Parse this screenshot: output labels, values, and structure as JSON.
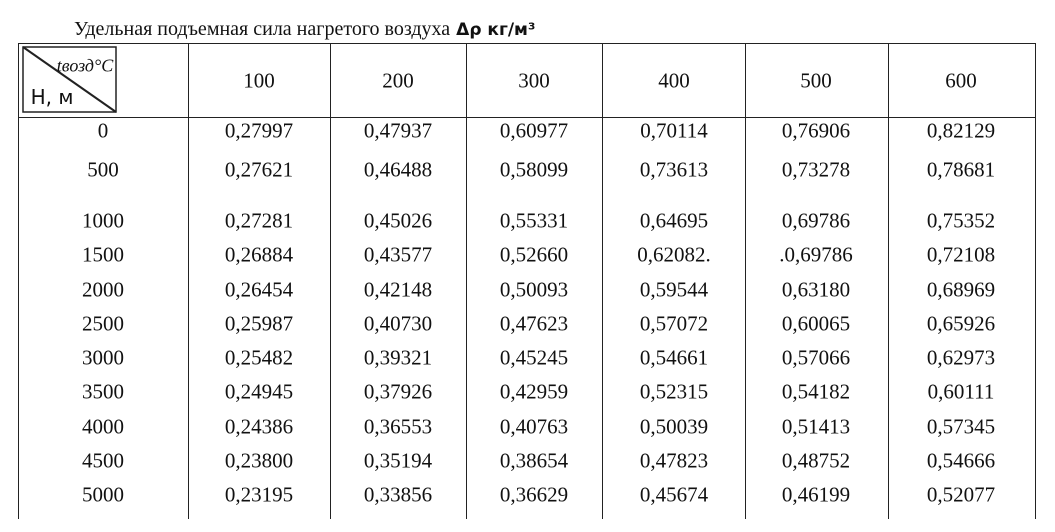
{
  "header": {
    "title": "Удельная подъемная сила нагретого воздуха",
    "unit": "Δρ кг/м³"
  },
  "table": {
    "corner": {
      "top": "tвозд°C",
      "bottom": "H, м"
    },
    "columns": [
      "100",
      "200",
      "300",
      "400",
      "500",
      "600"
    ],
    "rows": [
      [
        "0",
        "0,27997",
        "0,47937",
        "0,60977",
        "0,70114",
        "0,76906",
        "0,82129"
      ],
      [
        "500",
        "0,27621",
        "0,46488",
        "0,58099",
        "0,73613",
        "0,73278",
        "0,78681"
      ],
      [
        "1000",
        "0,27281",
        "0,45026",
        "0,55331",
        "0,64695",
        "0,69786",
        "0,75352"
      ],
      [
        "1500",
        "0,26884",
        "0,43577",
        "0,52660",
        "0,62082.",
        ".0,69786",
        "0,72108"
      ],
      [
        "2000",
        "0,26454",
        "0,42148",
        "0,50093",
        "0,59544",
        "0,63180",
        "0,68969"
      ],
      [
        "2500",
        "0,25987",
        "0,40730",
        "0,47623",
        "0,57072",
        "0,60065",
        "0,65926"
      ],
      [
        "3000",
        "0,25482",
        "0,39321",
        "0,45245",
        "0,54661",
        "0,57066",
        "0,62973"
      ],
      [
        "3500",
        "0,24945",
        "0,37926",
        "0,42959",
        "0,52315",
        "0,54182",
        "0,60111"
      ],
      [
        "4000",
        "0,24386",
        "0,36553",
        "0,40763",
        "0,50039",
        "0,51413",
        "0,57345"
      ],
      [
        "4500",
        "0,23800",
        "0,35194",
        "0,38654",
        "0,47823",
        "0,48752",
        "0,54666"
      ],
      [
        "5000",
        "0,23195",
        "0,33856",
        "0,36629",
        "0,45674",
        "0,46199",
        "0,52077"
      ]
    ]
  }
}
